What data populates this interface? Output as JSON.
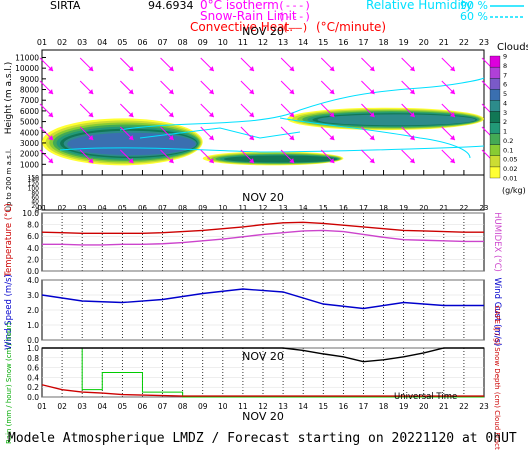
{
  "header": {
    "station": "SIRTA",
    "coord": "94.6934",
    "legend": [
      {
        "label": "0°C isotherm",
        "swatch": "(---)",
        "color": "#ff00ff"
      },
      {
        "label": "Snow-Rain Limit",
        "swatch": "(---)",
        "color": "#ff00ff"
      },
      {
        "label": "Convective Heat.",
        "swatch": "(——)",
        "unit": "(°C/minute)",
        "color": "#ff0000"
      }
    ],
    "rh": {
      "label": "Relative Humidity",
      "v1": "90 %",
      "v2": "60 %",
      "color": "#00e0ff"
    }
  },
  "footer": "Modele Atmospherique LMDZ / Forecast starting on 20221120 at 0hUT",
  "time_axis": {
    "hours": [
      "01",
      "02",
      "03",
      "04",
      "05",
      "06",
      "07",
      "08",
      "09",
      "10",
      "11",
      "12",
      "13",
      "14",
      "15",
      "16",
      "17",
      "18",
      "19",
      "20",
      "21",
      "22",
      "23"
    ],
    "date": "NOV 20",
    "universal_time": "Universal Time"
  },
  "colors": {
    "cloud_levels": [
      "#ffff33",
      "#ccdd33",
      "#88cc33",
      "#44aa55",
      "#229977",
      "#117755",
      "#2d8b8b",
      "#3a6fb0",
      "#7a5ac8",
      "#b040d8",
      "#dd00dd"
    ],
    "temperature": "#cc0000",
    "humidex": "#cc44cc",
    "wind": "#0000cc",
    "rain": "#00cc00",
    "cape": "#cc0000",
    "cloud_fraction": "#000000",
    "wind_arrow": "#ff00ff",
    "rh_contour": "#00e0ff"
  },
  "chart_data": [
    {
      "type": "heatmap",
      "title": "Clouds",
      "ylabel": "Height (m a.s.l.)",
      "ylabel_low": "Up to 200 m a.s.l.",
      "yticks": [
        1000,
        2000,
        3000,
        4000,
        5000,
        6000,
        7000,
        8000,
        9000,
        10000,
        11000
      ],
      "yticks_low": [
        0,
        10,
        20,
        30,
        40,
        50,
        60,
        70,
        80,
        90,
        100,
        110,
        120,
        130,
        140,
        150
      ],
      "colorbar": {
        "labels": [
          "0.01",
          "0.02",
          "0.05",
          "0.1",
          "0.2",
          "1",
          "2",
          "3",
          "4",
          "5",
          "6",
          "7",
          "8",
          "9"
        ],
        "unit": "(g/kg)"
      },
      "date_label": "NOV 20",
      "cloud_layers": [
        {
          "name": "upper layer 14-23h",
          "level_max": 6,
          "x_start": 13.2,
          "x_end": 23,
          "top_m": 6300,
          "bottom_m": 4200
        },
        {
          "name": "low layer 01-09h",
          "level_max": 7,
          "x_start": 1,
          "x_end": 9,
          "top_m": 5300,
          "bottom_m": 900
        },
        {
          "name": "low layer 09-16h",
          "level_max": 5,
          "x_start": 9,
          "x_end": 16,
          "top_m": 2200,
          "bottom_m": 900
        }
      ]
    },
    {
      "type": "line",
      "xlabel": "",
      "ylabel": "Temperature (°C)",
      "ylabel_right": "HUMIDEX (°C)",
      "x": [
        1,
        2,
        3,
        4,
        5,
        6,
        7,
        8,
        9,
        10,
        11,
        12,
        13,
        14,
        15,
        16,
        17,
        18,
        19,
        20,
        21,
        22,
        23
      ],
      "ylim": [
        0,
        10
      ],
      "yticks": [
        0.0,
        2.0,
        4.0,
        6.0,
        8.0,
        10.0
      ],
      "series": [
        {
          "name": "Temperature",
          "values": [
            6.7,
            6.6,
            6.5,
            6.5,
            6.5,
            6.5,
            6.6,
            6.8,
            7.0,
            7.3,
            7.6,
            8.0,
            8.3,
            8.4,
            8.2,
            7.9,
            7.6,
            7.3,
            7.0,
            6.9,
            6.8,
            6.7,
            6.7
          ]
        },
        {
          "name": "HUMIDEX",
          "values": [
            4.6,
            4.6,
            4.5,
            4.5,
            4.6,
            4.6,
            4.7,
            4.9,
            5.2,
            5.5,
            5.9,
            6.3,
            6.6,
            6.9,
            7.0,
            6.8,
            6.3,
            5.8,
            5.4,
            5.3,
            5.2,
            5.1,
            5.1
          ]
        }
      ]
    },
    {
      "type": "line",
      "ylabel": "Wind Speed (m/s)",
      "ylabel_right": "Wind Gust (m/s)",
      "x": [
        1,
        3,
        5,
        7,
        9,
        11,
        13,
        15,
        17,
        19,
        21,
        23
      ],
      "ylim": [
        0,
        4
      ],
      "yticks": [
        0.0,
        1.0,
        2.0,
        3.0,
        4.0
      ],
      "series": [
        {
          "name": "Wind Speed",
          "values": [
            3.0,
            2.6,
            2.5,
            2.7,
            3.1,
            3.4,
            3.2,
            2.4,
            2.1,
            2.5,
            2.3,
            2.3
          ]
        }
      ]
    },
    {
      "type": "line",
      "ylabel": "Rain (mm / hour) Snow (cm / hour)",
      "ylabel_right": "CAPE (J / g) Snow Depth (cm) Cloud Fraction",
      "x": [
        1,
        2,
        3,
        4,
        5,
        6,
        7,
        8,
        9,
        10,
        11,
        12,
        13,
        14,
        15,
        16,
        17,
        18,
        19,
        20,
        21,
        22,
        23
      ],
      "ylim": [
        0,
        1
      ],
      "yticks": [
        0.0,
        0.2,
        0.4,
        0.6,
        0.8,
        1.0
      ],
      "date_label": "NOV 20",
      "series": [
        {
          "name": "Rain",
          "steps": [
            [
              1,
              1.0
            ],
            [
              2,
              1.0
            ],
            [
              3,
              0.15
            ],
            [
              4,
              0.5
            ],
            [
              5,
              0.5
            ],
            [
              6,
              0.1
            ],
            [
              7,
              0.1
            ],
            [
              8,
              0.0
            ],
            [
              23,
              0.0
            ]
          ]
        },
        {
          "name": "CAPE",
          "values": [
            0.25,
            0.15,
            0.1,
            0.08,
            0.05,
            0.04,
            0.03,
            0.02,
            0.02,
            0.02,
            0.02,
            0.02,
            0.02,
            0.02,
            0.02,
            0.02,
            0.02,
            0.02,
            0.02,
            0.02,
            0.02,
            0.02,
            0.02
          ]
        },
        {
          "name": "Cloud Fraction",
          "values": [
            1,
            1,
            1,
            1,
            1,
            1,
            1,
            1,
            1,
            1,
            1,
            1,
            1,
            0.95,
            0.88,
            0.82,
            0.72,
            0.76,
            0.82,
            0.9,
            1,
            1,
            1
          ]
        }
      ]
    }
  ]
}
